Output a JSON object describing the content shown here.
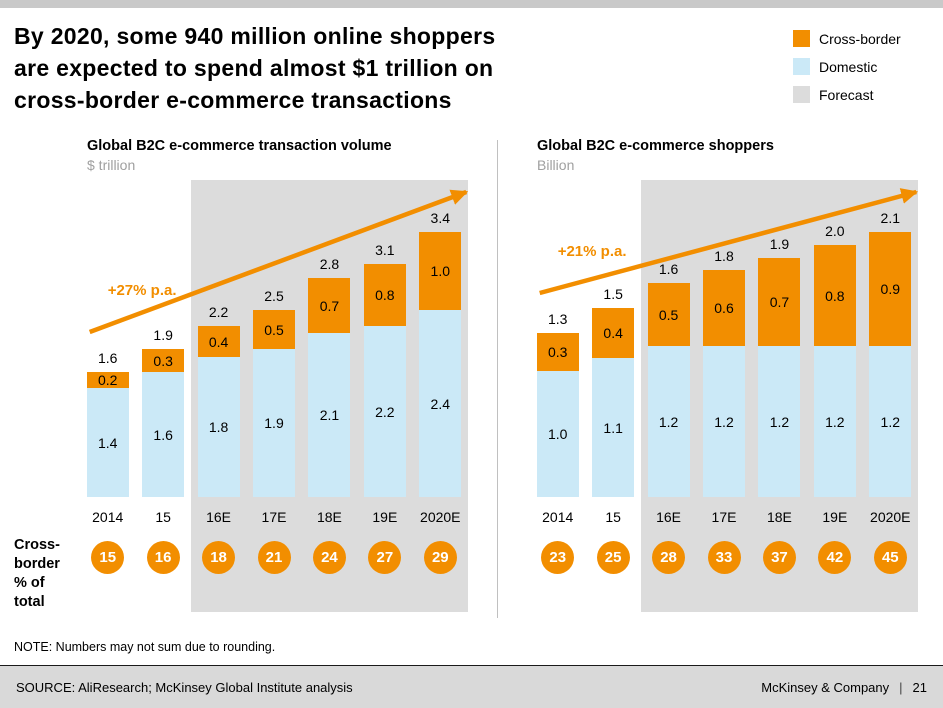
{
  "slide": {
    "title_lines": [
      "By 2020, some 940 million online shoppers",
      "are expected to spend almost $1 trillion on",
      "cross-border e-commerce transactions"
    ],
    "row_label_lines": [
      "Cross-",
      "border",
      "% of",
      "total"
    ],
    "note": "NOTE: Numbers may not sum due to rounding.",
    "source": "SOURCE: AliResearch; McKinsey Global Institute analysis",
    "brand": "McKinsey & Company",
    "page_separator": "|",
    "page_number": "21"
  },
  "legend": {
    "position": "top-right",
    "items": [
      {
        "label": "Cross-border",
        "color": "#F28E00"
      },
      {
        "label": "Domestic",
        "color": "#CBE9F7"
      },
      {
        "label": "Forecast",
        "color": "#DCDCDC"
      }
    ]
  },
  "colors": {
    "cross_border": "#F28E00",
    "domestic": "#CBE9F7",
    "forecast_bg": "#DCDCDC",
    "footer_bg": "#D9D9D9"
  },
  "chart_data": [
    {
      "type": "bar",
      "stacked": true,
      "title": "Global B2C e-commerce transaction volume",
      "unit": "$ trillion",
      "categories": [
        "2014",
        "15",
        "16E",
        "17E",
        "18E",
        "19E",
        "2020E"
      ],
      "series": [
        {
          "name": "Domestic",
          "values": [
            1.4,
            1.6,
            1.8,
            1.9,
            2.1,
            2.2,
            2.4
          ]
        },
        {
          "name": "Cross-border",
          "values": [
            0.2,
            0.3,
            0.4,
            0.5,
            0.7,
            0.8,
            1.0
          ]
        }
      ],
      "totals": [
        1.6,
        1.9,
        2.2,
        2.5,
        2.8,
        3.1,
        3.4
      ],
      "growth_label": "+27% p.a.",
      "forecast_from_index": 2,
      "cross_border_pct": [
        15,
        16,
        18,
        21,
        24,
        27,
        29
      ],
      "ylim": [
        0,
        3.4
      ],
      "grid": false,
      "legend_position": "top-right"
    },
    {
      "type": "bar",
      "stacked": true,
      "title": "Global B2C e-commerce shoppers",
      "unit": "Billion",
      "categories": [
        "2014",
        "15",
        "16E",
        "17E",
        "18E",
        "19E",
        "2020E"
      ],
      "series": [
        {
          "name": "Domestic",
          "values": [
            1.0,
            1.1,
            1.2,
            1.2,
            1.2,
            1.2,
            1.2
          ]
        },
        {
          "name": "Cross-border",
          "values": [
            0.3,
            0.4,
            0.5,
            0.6,
            0.7,
            0.8,
            0.9
          ]
        }
      ],
      "totals": [
        1.3,
        1.5,
        1.6,
        1.8,
        1.9,
        2.0,
        2.1
      ],
      "growth_label": "+21% p.a.",
      "forecast_from_index": 2,
      "cross_border_pct": [
        23,
        25,
        28,
        33,
        37,
        42,
        45
      ],
      "ylim": [
        0,
        2.1
      ],
      "grid": false,
      "legend_position": "top-right"
    }
  ]
}
